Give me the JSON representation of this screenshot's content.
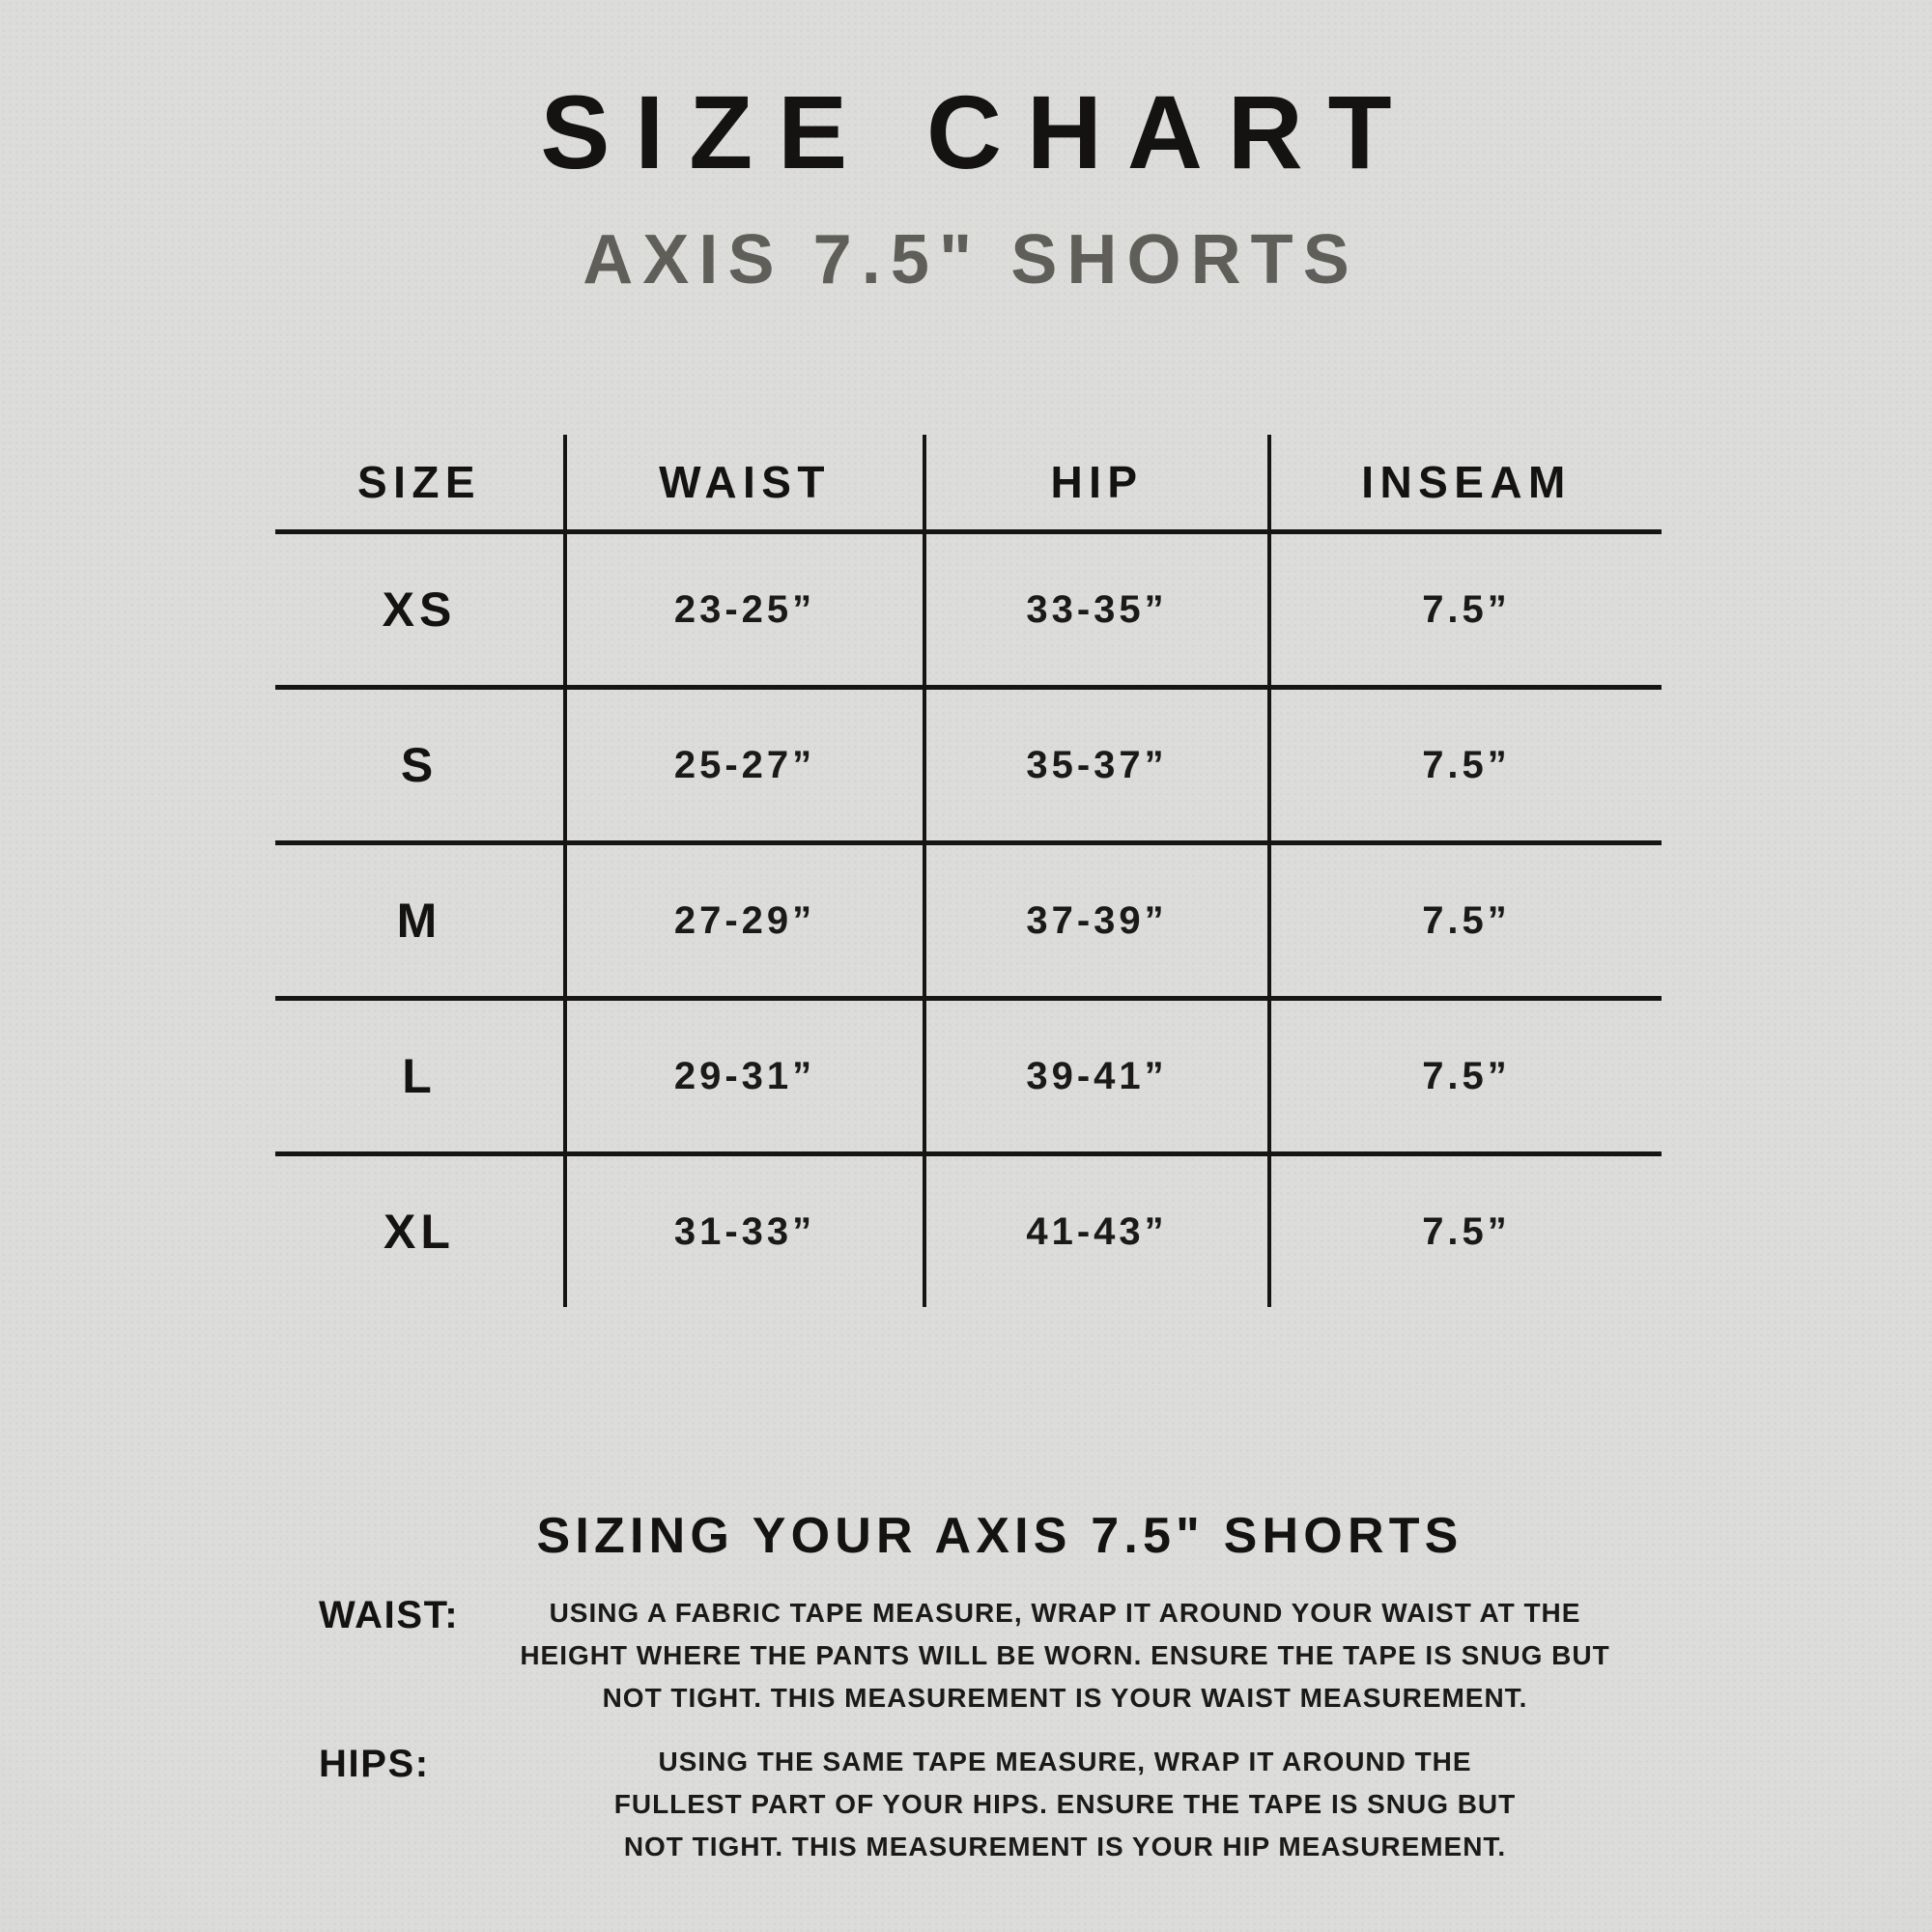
{
  "chart_data": {
    "type": "table",
    "title": "SIZE CHART",
    "subtitle": "AXIS 7.5\" SHORTS",
    "columns": [
      "SIZE",
      "WAIST",
      "HIP",
      "INSEAM"
    ],
    "rows": [
      [
        "XS",
        "23-25”",
        "33-35”",
        "7.5”"
      ],
      [
        "S",
        "25-27”",
        "35-37”",
        "7.5”"
      ],
      [
        "M",
        "27-29”",
        "37-39”",
        "7.5”"
      ],
      [
        "L",
        "29-31”",
        "39-41”",
        "7.5”"
      ],
      [
        "XL",
        "31-33”",
        "41-43”",
        "7.5”"
      ]
    ],
    "layout_hints": {
      "grid": "horizontal rules between rows, vertical rules between columns, no outer border",
      "legend_position": "none"
    }
  },
  "sizing_guide": {
    "heading": "SIZING YOUR AXIS 7.5\" SHORTS",
    "waist": {
      "label": "WAIST:",
      "lines": [
        "USING A FABRIC TAPE MEASURE, WRAP IT AROUND YOUR WAIST AT THE",
        "HEIGHT WHERE THE PANTS WILL BE WORN. ENSURE THE TAPE IS SNUG BUT",
        "NOT TIGHT. THIS MEASUREMENT IS YOUR WAIST MEASUREMENT."
      ]
    },
    "hips": {
      "label": "HIPS:",
      "lines": [
        "USING THE SAME TAPE MEASURE, WRAP IT AROUND THE",
        "FULLEST PART OF YOUR HIPS. ENSURE THE TAPE IS SNUG BUT",
        "NOT TIGHT. THIS MEASUREMENT IS YOUR HIP MEASUREMENT."
      ]
    }
  },
  "colors": {
    "background": "#dadad8",
    "text": "#141312",
    "subtitle_text": "#605e59",
    "table_lines": "#161514"
  }
}
